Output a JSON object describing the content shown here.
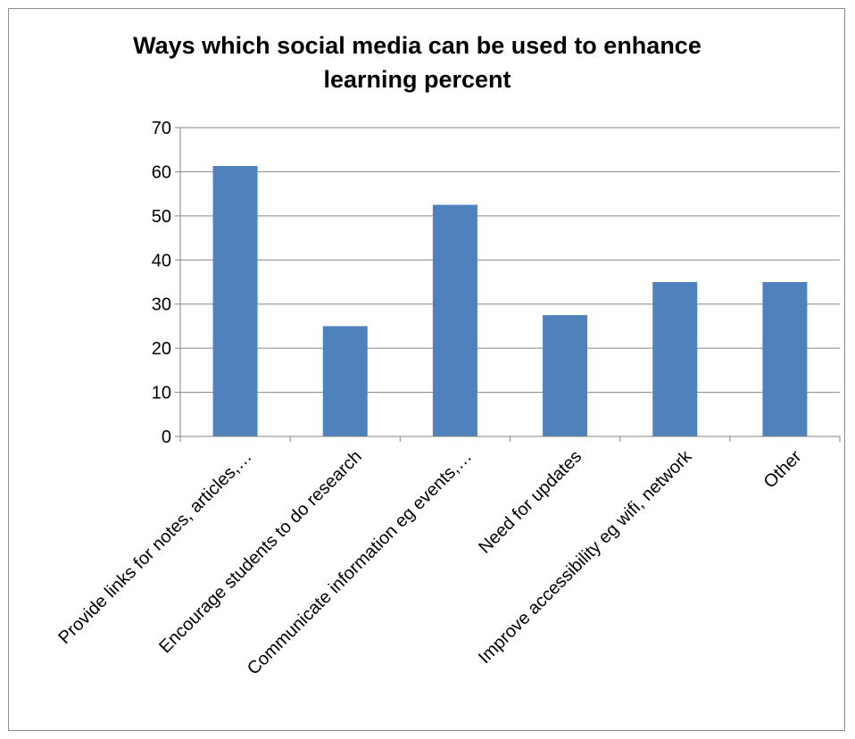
{
  "chart_data": {
    "type": "bar",
    "title": "Ways which social media can be used to enhance learning percent",
    "title_lines": [
      "Ways which social media can be used to enhance",
      "learning percent"
    ],
    "categories": [
      "Provide links for notes, articles,…",
      "Encourage students to do research",
      "Communicate information eg events,…",
      "Need for updates",
      "Improve accessibility eg wifi, network",
      "Other"
    ],
    "values": [
      61.3,
      25,
      52.5,
      27.5,
      35,
      35
    ],
    "ylim": [
      0,
      70
    ],
    "yticks": [
      0,
      10,
      20,
      30,
      40,
      50,
      60,
      70
    ],
    "xlabel": "",
    "ylabel": "",
    "grid": true,
    "legend": "none",
    "bar_color": "#4f81bd",
    "grid_color": "#868686",
    "axis_color": "#868686"
  }
}
